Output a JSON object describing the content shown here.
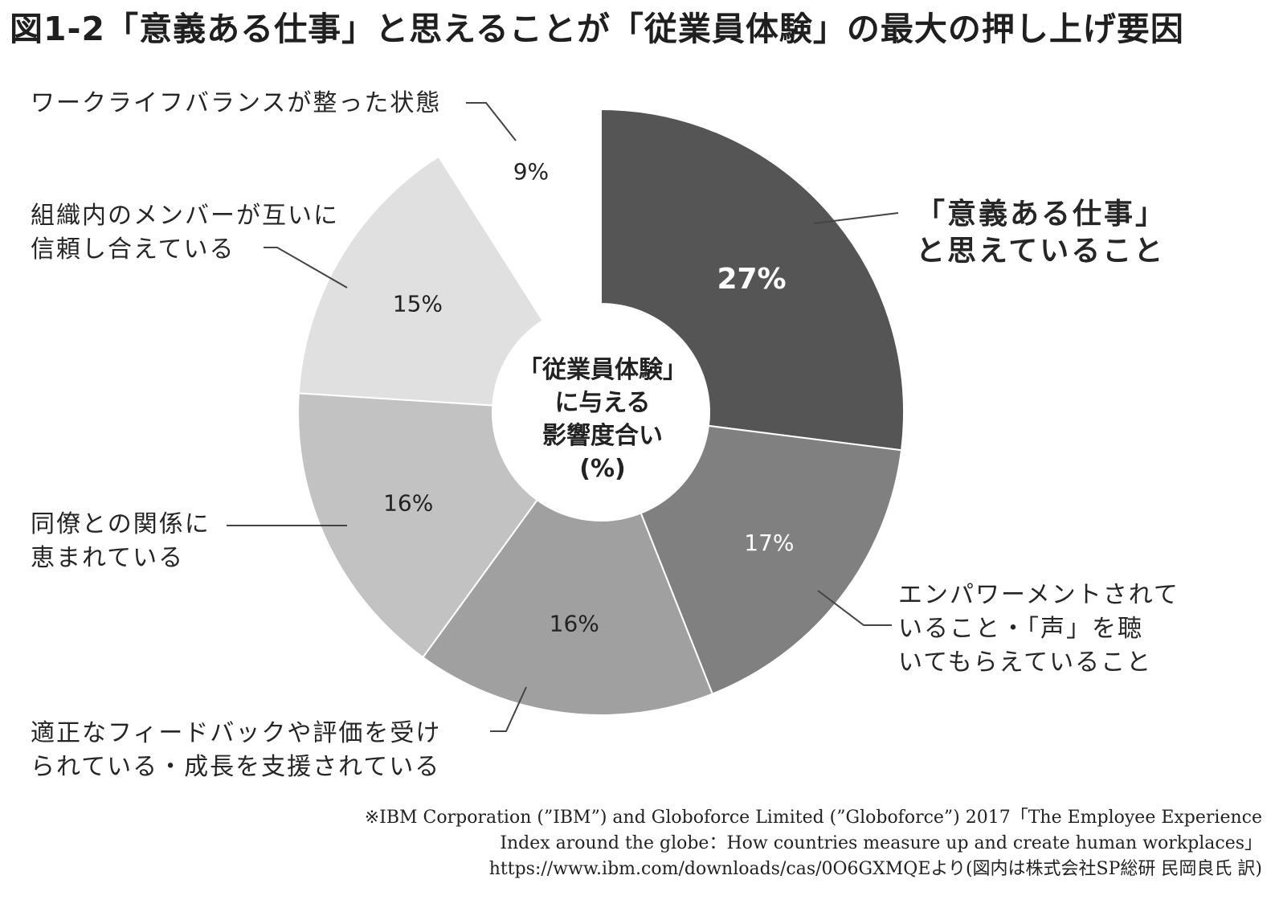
{
  "title": "図1-2「意義ある仕事」と思えることが「従業員体験」の最大の押し上げ要因",
  "chart_data": {
    "type": "pie",
    "title": "図1-2「意義ある仕事」と思えることが「従業員体験」の最大の押し上げ要因",
    "center_label": [
      "「従業員体験」",
      "に与える",
      "影響度合い",
      "(%)"
    ],
    "slices": [
      {
        "label": [
          "「意義ある仕事」",
          "と思えていること"
        ],
        "value": 27,
        "value_label": "27%",
        "color": "#555555",
        "text_color": "#ffffff"
      },
      {
        "label": [
          "エンパワーメントされて",
          "いること・「声」を聴",
          "いてもらえていること"
        ],
        "value": 17,
        "value_label": "17%",
        "color": "#808080",
        "text_color": "#ffffff"
      },
      {
        "label": [
          "適正なフィードバックや評価を受け",
          "られている・成長を支援されている"
        ],
        "value": 16,
        "value_label": "16%",
        "color": "#a0a0a0",
        "text_color": "#222222"
      },
      {
        "label": [
          "同僚との関係に",
          "恵まれている"
        ],
        "value": 16,
        "value_label": "16%",
        "color": "#c2c2c2",
        "text_color": "#222222"
      },
      {
        "label": [
          "組織内のメンバーが互いに",
          "信頼し合えている"
        ],
        "value": 15,
        "value_label": "15%",
        "color": "#e0e0e0",
        "text_color": "#222222"
      },
      {
        "label": [
          "ワークライフバランスが整った状態"
        ],
        "value": 9,
        "value_label": "9%",
        "color": "#ffffff",
        "text_color": "#222222"
      }
    ]
  },
  "source": [
    "※IBM Corporation (”IBM”) and Globoforce Limited (”Globoforce”) 2017「The Employee Experience",
    "Index around the globe：How countries measure up and create human workplaces」",
    "https://www.ibm.com/downloads/cas/0O6GXMQEより(図内は株式会社SP総研 民岡良氏 訳)"
  ]
}
